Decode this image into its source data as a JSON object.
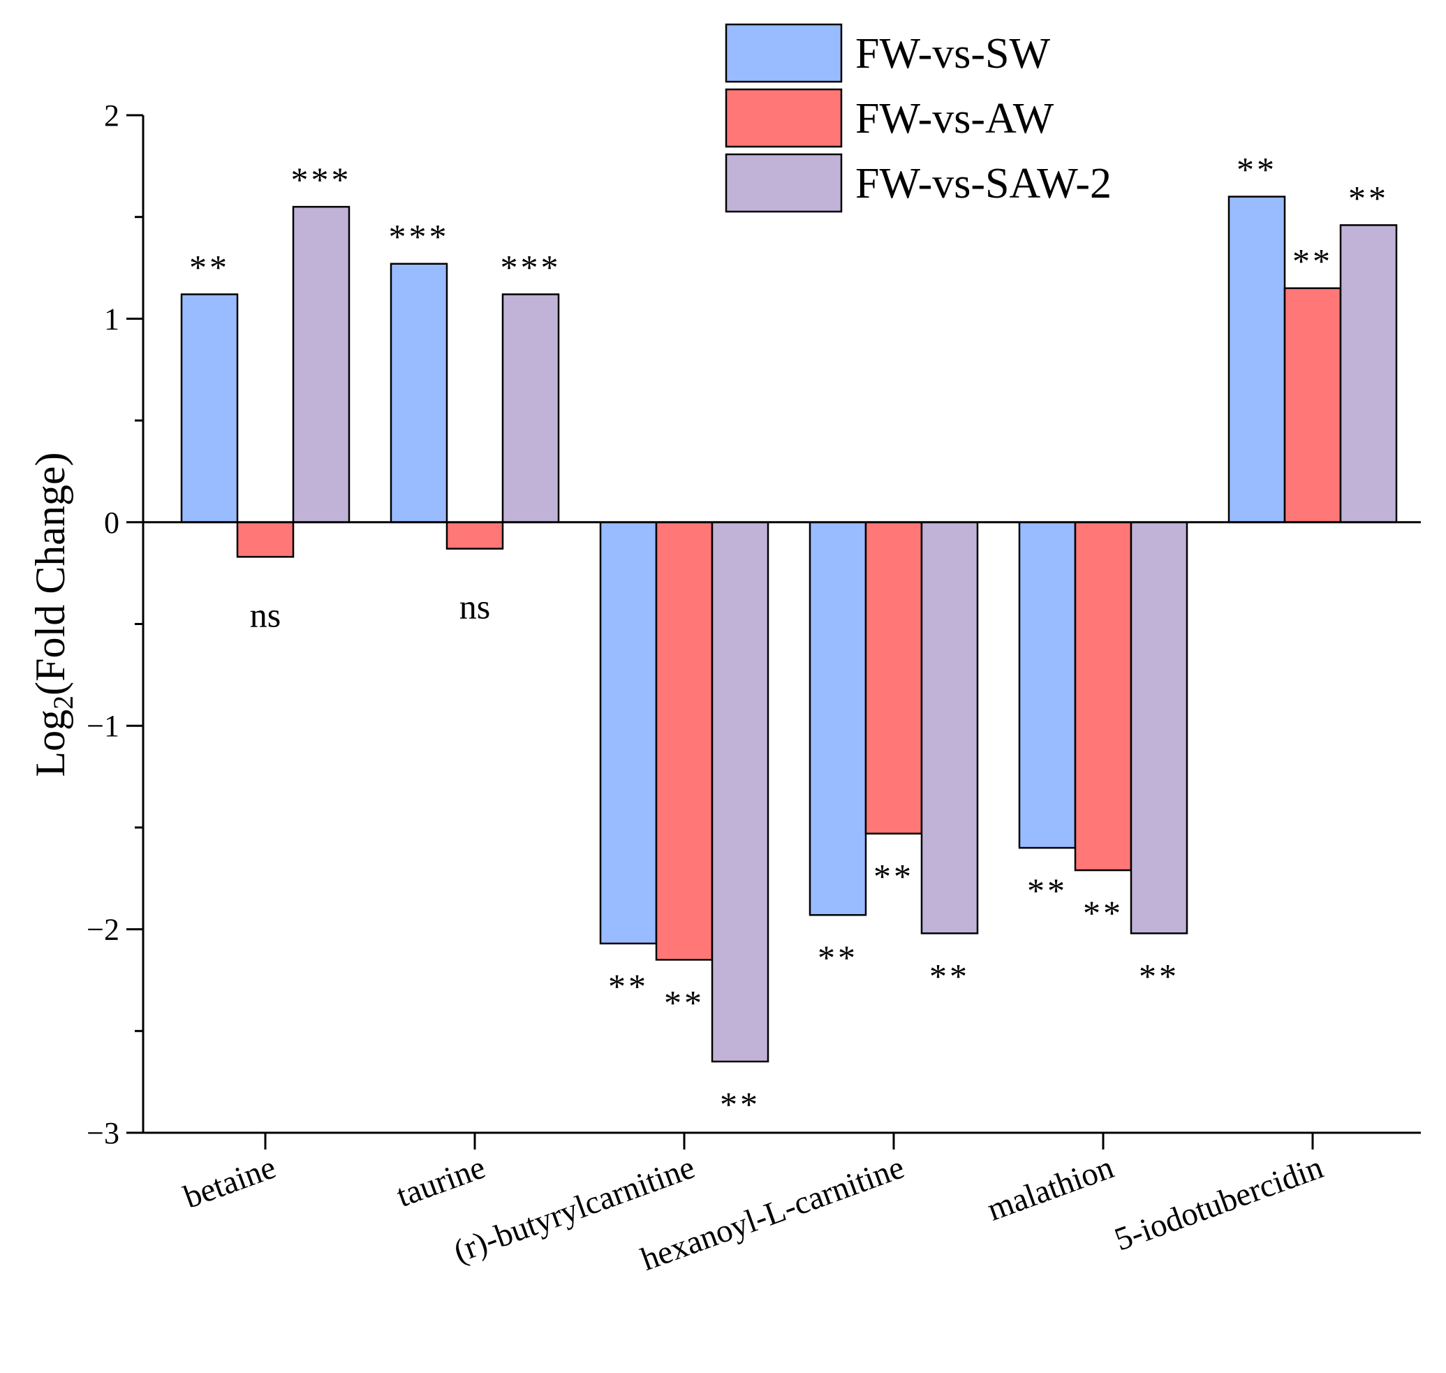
{
  "chart_data": {
    "type": "bar",
    "ylabel": "Log",
    "ylabel_subscript": "2",
    "ylabel_suffix": "(Fold Change)",
    "xlabel": "",
    "ylim": [
      -3,
      2
    ],
    "yticks": [
      2,
      1,
      0,
      -1,
      -2,
      -3
    ],
    "ytick_labels": [
      "2",
      "1",
      "0",
      "−1",
      "−2",
      "−3"
    ],
    "categories": [
      "betaine",
      "taurine",
      "(r)-butyrylcarnitine",
      "hexanoyl-L-carnitine",
      "malathion",
      "5-iodotubercidin"
    ],
    "series": [
      {
        "name": "FW-vs-SW",
        "color": "#99bbff",
        "values": [
          1.12,
          1.27,
          -2.07,
          -1.93,
          -1.6,
          1.6
        ],
        "significance": [
          "**",
          "***",
          "**",
          "**",
          "**",
          "**"
        ]
      },
      {
        "name": "FW-vs-AW",
        "color": "#ff7777",
        "values": [
          -0.17,
          -0.13,
          -2.15,
          -1.53,
          -1.71,
          1.15
        ],
        "significance": [
          "ns",
          "ns",
          "**",
          "**",
          "**",
          "**"
        ]
      },
      {
        "name": "FW-vs-SAW-2",
        "color": "#c1b3d7",
        "values": [
          1.55,
          1.12,
          -2.65,
          -2.02,
          -2.02,
          1.46
        ],
        "significance": [
          "***",
          "***",
          "**",
          "**",
          "**",
          "**"
        ]
      }
    ],
    "legend_position": "top-right",
    "grid": false
  }
}
